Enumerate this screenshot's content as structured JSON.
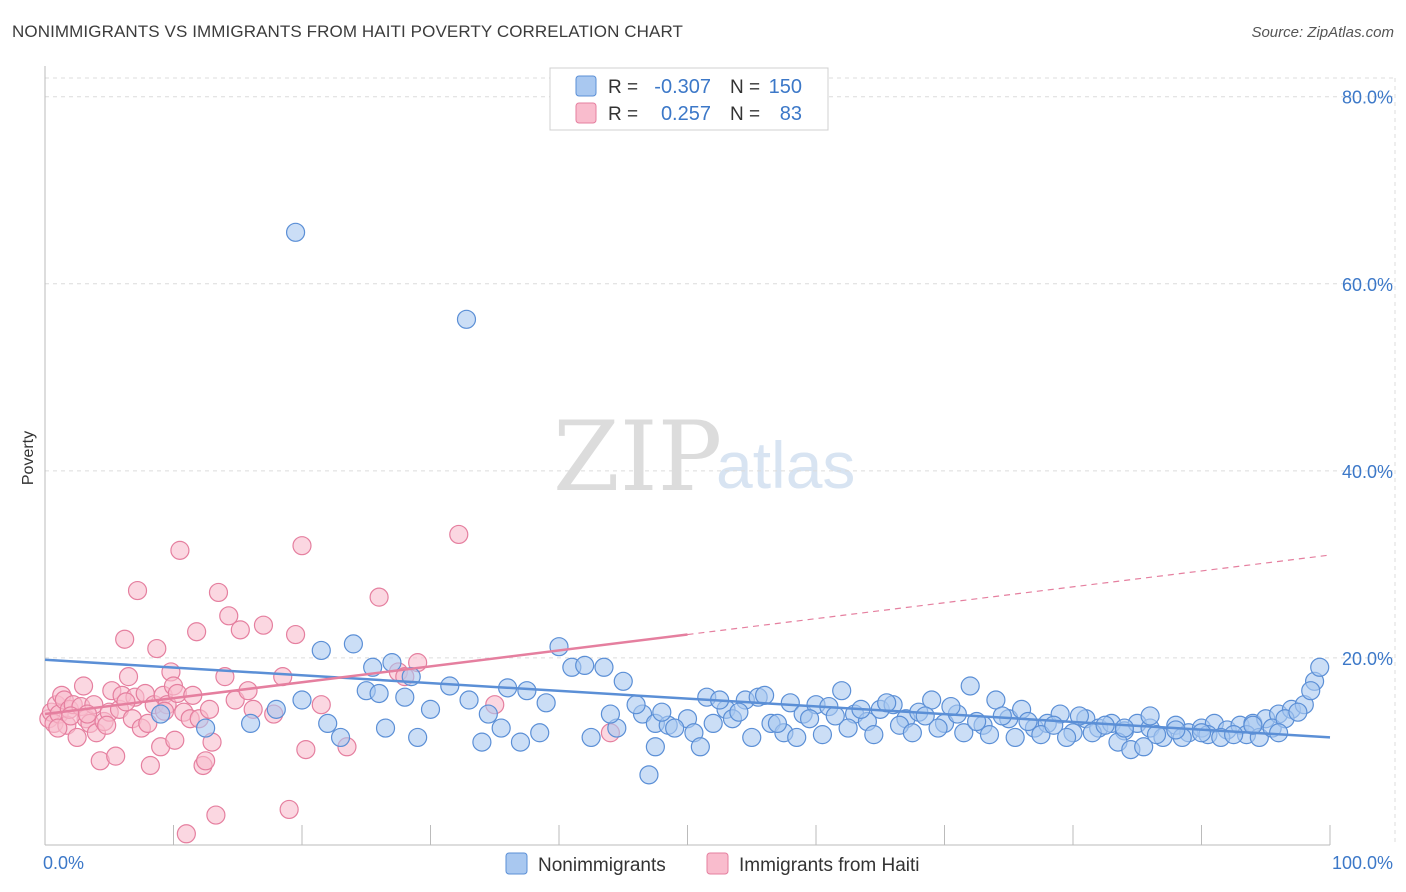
{
  "header": {
    "title": "NONIMMIGRANTS VS IMMIGRANTS FROM HAITI POVERTY CORRELATION CHART",
    "source": "Source: ZipAtlas.com"
  },
  "watermark": {
    "zip": "ZIP",
    "atlas": "atlas"
  },
  "legend_top": {
    "rows": [
      {
        "r_label": "R =",
        "r_value": "-0.307",
        "n_label": "N =",
        "n_value": "150",
        "color": "#a9c8f0",
        "stroke": "#5b8fd6"
      },
      {
        "r_label": "R =",
        "r_value": "0.257",
        "n_label": "N =",
        "n_value": "83",
        "color": "#f9bccd",
        "stroke": "#e57f9f"
      }
    ]
  },
  "legend_bottom": {
    "items": [
      {
        "label": "Nonimmigrants",
        "color": "#a9c8f0",
        "stroke": "#5b8fd6"
      },
      {
        "label": "Immigrants from Haiti",
        "color": "#f9bccd",
        "stroke": "#e57f9f"
      }
    ]
  },
  "chart_data": {
    "type": "scatter",
    "title": "NONIMMIGRANTS VS IMMIGRANTS FROM HAITI POVERTY CORRELATION CHART",
    "xlabel": "",
    "ylabel": "Poverty",
    "x_tick_labels": [
      "0.0%",
      "100.0%"
    ],
    "y_tick_labels": [
      "80.0%",
      "60.0%",
      "40.0%",
      "20.0%"
    ],
    "y_tick_values": [
      80,
      60,
      40,
      20
    ],
    "xlim": [
      0,
      100
    ],
    "ylim": [
      0,
      82
    ],
    "grid": true,
    "legend_position": "top-center",
    "series": [
      {
        "name": "Nonimmigrants",
        "color": "#5b8fd6",
        "fill": "#a9c8f0",
        "trend": {
          "x": [
            0,
            100
          ],
          "y": [
            19.8,
            11.5
          ],
          "dashed_extension": false
        },
        "points": [
          [
            19.5,
            65.5
          ],
          [
            32.8,
            56.2
          ],
          [
            21.5,
            20.8
          ],
          [
            24.0,
            21.5
          ],
          [
            25.5,
            19.0
          ],
          [
            27.0,
            19.5
          ],
          [
            28.5,
            18.0
          ],
          [
            25.0,
            16.5
          ],
          [
            26.0,
            16.2
          ],
          [
            28.0,
            15.8
          ],
          [
            30.0,
            14.5
          ],
          [
            31.5,
            17.0
          ],
          [
            33.0,
            15.5
          ],
          [
            34.5,
            14.0
          ],
          [
            36.0,
            16.8
          ],
          [
            37.5,
            16.5
          ],
          [
            39.0,
            15.2
          ],
          [
            40.0,
            21.2
          ],
          [
            41.0,
            19.0
          ],
          [
            42.0,
            19.2
          ],
          [
            43.5,
            19.0
          ],
          [
            45.0,
            17.5
          ],
          [
            46.5,
            14.0
          ],
          [
            47.5,
            13.0
          ],
          [
            48.5,
            12.8
          ],
          [
            50.0,
            13.5
          ],
          [
            51.5,
            15.8
          ],
          [
            52.0,
            13.0
          ],
          [
            53.0,
            14.5
          ],
          [
            54.5,
            15.5
          ],
          [
            55.5,
            15.8
          ],
          [
            56.5,
            13.0
          ],
          [
            57.5,
            12.0
          ],
          [
            58.0,
            15.2
          ],
          [
            59.0,
            14.0
          ],
          [
            60.0,
            15.0
          ],
          [
            61.0,
            14.8
          ],
          [
            62.0,
            16.5
          ],
          [
            63.0,
            14.0
          ],
          [
            64.0,
            13.2
          ],
          [
            65.0,
            14.5
          ],
          [
            66.0,
            15.0
          ],
          [
            67.0,
            13.5
          ],
          [
            68.0,
            14.2
          ],
          [
            69.0,
            15.5
          ],
          [
            70.0,
            13.0
          ],
          [
            71.0,
            14.0
          ],
          [
            72.0,
            17.0
          ],
          [
            73.0,
            12.8
          ],
          [
            74.0,
            15.5
          ],
          [
            75.0,
            13.5
          ],
          [
            76.0,
            14.5
          ],
          [
            77.0,
            12.5
          ],
          [
            78.0,
            13.0
          ],
          [
            79.0,
            14.0
          ],
          [
            80.0,
            12.0
          ],
          [
            81.0,
            13.5
          ],
          [
            82.0,
            12.5
          ],
          [
            83.0,
            13.0
          ],
          [
            84.0,
            12.2
          ],
          [
            85.0,
            13.0
          ],
          [
            86.0,
            12.5
          ],
          [
            87.0,
            11.5
          ],
          [
            88.0,
            12.8
          ],
          [
            89.0,
            12.0
          ],
          [
            90.0,
            12.5
          ],
          [
            91.0,
            13.0
          ],
          [
            92.0,
            12.3
          ],
          [
            93.0,
            12.8
          ],
          [
            94.0,
            13.0
          ],
          [
            95.0,
            13.5
          ],
          [
            96.0,
            14.0
          ],
          [
            97.0,
            14.5
          ],
          [
            98.0,
            15.0
          ],
          [
            98.8,
            17.5
          ],
          [
            99.2,
            19.0
          ],
          [
            9.0,
            14.0
          ],
          [
            12.5,
            12.5
          ],
          [
            16.0,
            13.0
          ],
          [
            18.0,
            14.5
          ],
          [
            20.0,
            15.5
          ],
          [
            22.0,
            13.0
          ],
          [
            23.0,
            11.5
          ],
          [
            26.5,
            12.5
          ],
          [
            29.0,
            11.5
          ],
          [
            34.0,
            11.0
          ],
          [
            35.5,
            12.5
          ],
          [
            37.0,
            11.0
          ],
          [
            38.5,
            12.0
          ],
          [
            42.5,
            11.5
          ],
          [
            44.5,
            12.5
          ],
          [
            47.0,
            7.5
          ],
          [
            47.5,
            10.5
          ],
          [
            49.0,
            12.5
          ],
          [
            50.5,
            12.0
          ],
          [
            51.0,
            10.5
          ],
          [
            53.5,
            13.5
          ],
          [
            55.0,
            11.5
          ],
          [
            57.0,
            13.0
          ],
          [
            58.5,
            11.5
          ],
          [
            60.5,
            11.8
          ],
          [
            62.5,
            12.5
          ],
          [
            64.5,
            11.8
          ],
          [
            66.5,
            12.8
          ],
          [
            67.5,
            12.0
          ],
          [
            69.5,
            12.5
          ],
          [
            71.5,
            12.0
          ],
          [
            73.5,
            11.8
          ],
          [
            75.5,
            11.5
          ],
          [
            77.5,
            11.8
          ],
          [
            79.5,
            11.5
          ],
          [
            81.5,
            12.0
          ],
          [
            83.5,
            11.0
          ],
          [
            84.5,
            10.2
          ],
          [
            85.5,
            10.5
          ],
          [
            86.5,
            11.8
          ],
          [
            88.5,
            11.5
          ],
          [
            90.5,
            11.8
          ],
          [
            91.5,
            11.5
          ],
          [
            93.5,
            11.8
          ],
          [
            94.5,
            11.5
          ],
          [
            95.5,
            12.5
          ],
          [
            96.5,
            13.5
          ],
          [
            97.5,
            14.2
          ],
          [
            44.0,
            14.0
          ],
          [
            46.0,
            15.0
          ],
          [
            48.0,
            14.2
          ],
          [
            52.5,
            15.5
          ],
          [
            54.0,
            14.2
          ],
          [
            56.0,
            16.0
          ],
          [
            59.5,
            13.5
          ],
          [
            61.5,
            13.8
          ],
          [
            63.5,
            14.5
          ],
          [
            65.5,
            15.2
          ],
          [
            68.5,
            13.8
          ],
          [
            70.5,
            14.8
          ],
          [
            72.5,
            13.2
          ],
          [
            74.5,
            13.8
          ],
          [
            76.5,
            13.2
          ],
          [
            78.5,
            12.8
          ],
          [
            80.5,
            13.8
          ],
          [
            82.5,
            12.8
          ],
          [
            84.0,
            12.5
          ],
          [
            86.0,
            13.8
          ],
          [
            88.0,
            12.3
          ],
          [
            90.0,
            12.0
          ],
          [
            92.5,
            11.8
          ],
          [
            94.0,
            12.8
          ],
          [
            96.0,
            12.0
          ],
          [
            98.5,
            16.5
          ]
        ]
      },
      {
        "name": "Immigrants from Haiti",
        "color": "#e57f9f",
        "fill": "#f9bccd",
        "trend": {
          "x": [
            0,
            50
          ],
          "y": [
            14.0,
            22.5
          ],
          "dashed_extension": {
            "x": [
              50,
              100
            ],
            "y": [
              22.5,
              31.0
            ]
          }
        },
        "points": [
          [
            0.3,
            13.5
          ],
          [
            0.5,
            14.2
          ],
          [
            0.7,
            13.0
          ],
          [
            0.9,
            15.0
          ],
          [
            1.1,
            14.0
          ],
          [
            1.3,
            16.0
          ],
          [
            1.5,
            15.5
          ],
          [
            1.7,
            12.8
          ],
          [
            1.9,
            14.5
          ],
          [
            2.2,
            15.0
          ],
          [
            2.5,
            11.5
          ],
          [
            2.8,
            14.8
          ],
          [
            3.0,
            17.0
          ],
          [
            3.2,
            13.5
          ],
          [
            3.5,
            13.0
          ],
          [
            3.8,
            15.0
          ],
          [
            4.0,
            12.0
          ],
          [
            4.3,
            9.0
          ],
          [
            4.6,
            13.2
          ],
          [
            5.0,
            14.2
          ],
          [
            5.2,
            16.5
          ],
          [
            5.5,
            9.5
          ],
          [
            5.8,
            14.5
          ],
          [
            6.0,
            16.0
          ],
          [
            6.2,
            22.0
          ],
          [
            6.5,
            18.0
          ],
          [
            6.8,
            13.5
          ],
          [
            7.0,
            15.8
          ],
          [
            7.2,
            27.2
          ],
          [
            7.5,
            12.5
          ],
          [
            7.8,
            16.2
          ],
          [
            8.0,
            13.0
          ],
          [
            8.2,
            8.5
          ],
          [
            8.5,
            15.0
          ],
          [
            8.7,
            21.0
          ],
          [
            9.0,
            10.5
          ],
          [
            9.2,
            16.0
          ],
          [
            9.5,
            15.0
          ],
          [
            9.8,
            18.5
          ],
          [
            10.0,
            17.0
          ],
          [
            10.3,
            16.2
          ],
          [
            10.5,
            31.5
          ],
          [
            10.8,
            14.2
          ],
          [
            11.0,
            1.2
          ],
          [
            11.3,
            13.5
          ],
          [
            11.5,
            16.0
          ],
          [
            11.8,
            22.8
          ],
          [
            12.0,
            13.5
          ],
          [
            12.3,
            8.5
          ],
          [
            12.5,
            9.0
          ],
          [
            12.8,
            14.5
          ],
          [
            13.0,
            11.0
          ],
          [
            13.3,
            3.2
          ],
          [
            13.5,
            27.0
          ],
          [
            14.0,
            18.0
          ],
          [
            14.3,
            24.5
          ],
          [
            14.8,
            15.5
          ],
          [
            15.2,
            23.0
          ],
          [
            15.8,
            16.5
          ],
          [
            16.2,
            14.5
          ],
          [
            17.0,
            23.5
          ],
          [
            17.8,
            14.0
          ],
          [
            18.5,
            18.0
          ],
          [
            19.0,
            3.8
          ],
          [
            19.5,
            22.5
          ],
          [
            20.0,
            32.0
          ],
          [
            20.3,
            10.2
          ],
          [
            21.5,
            15.0
          ],
          [
            23.5,
            10.5
          ],
          [
            26.0,
            26.5
          ],
          [
            27.5,
            18.5
          ],
          [
            28.0,
            18.0
          ],
          [
            29.0,
            19.5
          ],
          [
            32.2,
            33.2
          ],
          [
            35.0,
            15.0
          ],
          [
            44.0,
            12.0
          ],
          [
            1.0,
            12.5
          ],
          [
            2.0,
            13.8
          ],
          [
            3.3,
            14.0
          ],
          [
            4.8,
            12.8
          ],
          [
            6.3,
            15.3
          ],
          [
            9.3,
            14.3
          ],
          [
            10.1,
            11.2
          ]
        ]
      }
    ]
  }
}
